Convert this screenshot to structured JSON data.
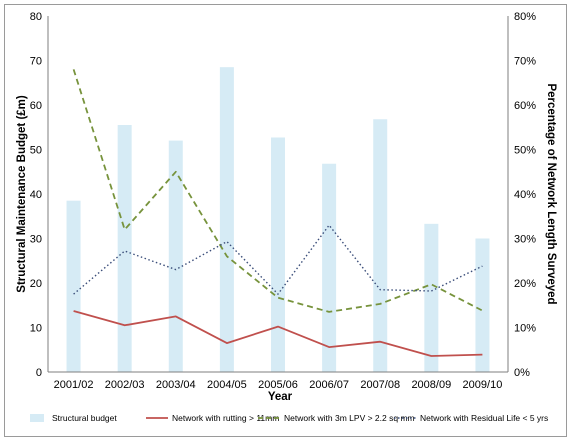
{
  "chart_data": {
    "type": "bar",
    "categories": [
      "2001/02",
      "2002/03",
      "2003/04",
      "2004/05",
      "2005/06",
      "2006/07",
      "2007/08",
      "2008/09",
      "2009/10"
    ],
    "xlabel": "Year",
    "ylabel": "Structural Maintenance Budget (£m)",
    "y2label": "Percentage of Network Length Surveyed",
    "ylim": [
      0,
      80
    ],
    "y2lim": [
      0,
      0.8
    ],
    "yticks": [
      "0",
      "10",
      "20",
      "30",
      "40",
      "50",
      "60",
      "70",
      "80"
    ],
    "y2ticks": [
      "0%",
      "10%",
      "20%",
      "30%",
      "40%",
      "50%",
      "60%",
      "70%",
      "80%"
    ],
    "grid": false,
    "legend_position": "bottom",
    "bars": {
      "name": "Structural budget",
      "color": "#d6ebf5",
      "axis": "left",
      "values": [
        38.5,
        55.5,
        52,
        68.5,
        52.7,
        46.8,
        56.8,
        33.3,
        30
      ]
    },
    "series": [
      {
        "name": "Network with rutting > 11mm",
        "color": "#c0504d",
        "style": "solid",
        "axis": "right",
        "values": [
          0.137,
          0.105,
          0.125,
          0.065,
          0.102,
          0.056,
          0.068,
          0.036,
          0.039
        ]
      },
      {
        "name": "Network with 3m LPV > 2.2 sq mm",
        "color": "#77933c",
        "style": "dashed",
        "axis": "right",
        "values": [
          0.68,
          0.32,
          0.45,
          0.26,
          0.167,
          0.135,
          0.153,
          0.197,
          0.138
        ]
      },
      {
        "name": "Network with Residual Life < 5 yrs",
        "color": "#3b4e7a",
        "style": "dotted",
        "axis": "right",
        "values": [
          0.175,
          0.272,
          0.23,
          0.293,
          0.175,
          0.33,
          0.185,
          0.182,
          0.238
        ]
      }
    ]
  }
}
